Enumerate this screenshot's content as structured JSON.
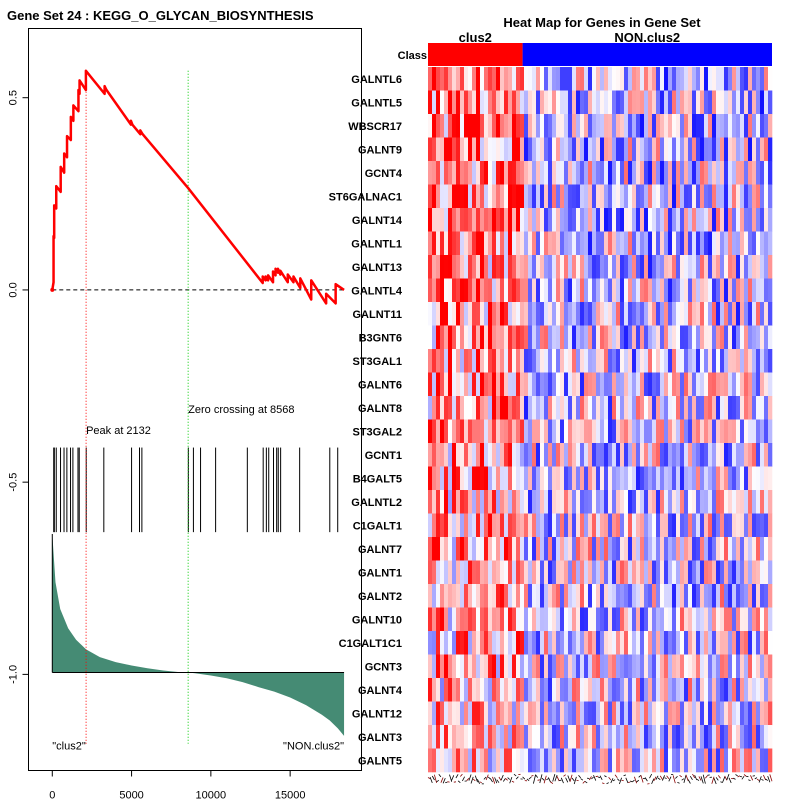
{
  "chart_data": [
    {
      "type": "line",
      "title": "Gene Set  24 : KEGG_O_GLYCAN_BIOSYNTHESIS",
      "xlabel": "",
      "ylabel": "",
      "xlim": [
        -1500,
        19500
      ],
      "ylim": [
        -1.25,
        0.68
      ],
      "x_ticks": [
        0,
        5000,
        10000,
        15000
      ],
      "x_tick_labels": [
        "0",
        "5000",
        "10000",
        "15000"
      ],
      "y_ticks": [
        0.5,
        0.0,
        -0.5,
        -1.0
      ],
      "y_tick_labels": [
        "0.5",
        "0.0",
        "-0.5",
        "-1.0"
      ],
      "running_es": {
        "name": "Enrichment score",
        "color": "#ff0000",
        "x": [
          0,
          80,
          80,
          120,
          120,
          250,
          250,
          530,
          530,
          750,
          750,
          930,
          930,
          1170,
          1170,
          1330,
          1330,
          1650,
          1650,
          1720,
          1720,
          2120,
          2120,
          3300,
          3300,
          3420,
          3420,
          4960,
          4960,
          5050,
          5050,
          5550,
          5550,
          5700,
          5700,
          8568,
          13270,
          13270,
          13450,
          13450,
          13610,
          13610,
          13920,
          13920,
          14080,
          14080,
          14230,
          14230,
          14380,
          14380,
          14850,
          14850,
          15210,
          15210,
          15640,
          15640,
          16330,
          16330,
          17270,
          17270,
          17870,
          17870,
          18400
        ],
        "y": [
          0,
          0.02,
          0.14,
          0.135,
          0.22,
          0.212,
          0.27,
          0.255,
          0.32,
          0.305,
          0.355,
          0.345,
          0.4,
          0.39,
          0.45,
          0.44,
          0.48,
          0.465,
          0.52,
          0.51,
          0.545,
          0.52,
          0.57,
          0.51,
          0.53,
          0.52,
          0.52,
          0.43,
          0.44,
          0.43,
          0.43,
          0.405,
          0.415,
          0.405,
          0.405,
          0.265,
          0.018,
          0.035,
          0.025,
          0.035,
          0.025,
          0.038,
          0.02,
          0.048,
          0.038,
          0.055,
          0.045,
          0.055,
          0.04,
          0.05,
          0.02,
          0.04,
          0.02,
          0.035,
          0.005,
          0.03,
          -0.025,
          0.025,
          -0.035,
          -0.01,
          -0.035,
          0.015,
          0.0
        ]
      },
      "zero_line": 0.0,
      "peak": {
        "x": 2132,
        "label": "Peak at 2132"
      },
      "zero_crossing": {
        "x": 8568,
        "label": "Zero crossing at 8568"
      },
      "hits": [
        90,
        130,
        250,
        520,
        740,
        920,
        1150,
        1300,
        1620,
        1700,
        2140,
        3250,
        5000,
        5500,
        5650,
        8580,
        8900,
        9350,
        10300,
        12300,
        13300,
        13500,
        13650,
        13950,
        14150,
        14250,
        14400,
        15600,
        17500,
        18000
      ],
      "ranked_metric": {
        "color": "#458b74",
        "baseline": -0.995,
        "x": [
          0,
          200,
          500,
          1000,
          1500,
          2132,
          3000,
          4000,
          5000,
          6000,
          7000,
          8000,
          8568,
          9000,
          10000,
          11000,
          12000,
          13000,
          14000,
          15000,
          16000,
          17000,
          17500,
          18000,
          18400
        ],
        "y": [
          -0.635,
          -0.76,
          -0.83,
          -0.88,
          -0.91,
          -0.935,
          -0.955,
          -0.968,
          -0.977,
          -0.984,
          -0.99,
          -0.994,
          -0.995,
          -0.997,
          -1.003,
          -1.01,
          -1.02,
          -1.033,
          -1.045,
          -1.06,
          -1.08,
          -1.105,
          -1.12,
          -1.14,
          -1.16
        ]
      },
      "class_labels": {
        "left": "\"clus2\"",
        "right": "\"NON.clus2\""
      }
    },
    {
      "type": "heatmap",
      "title": "Heat Map for Genes in Gene Set",
      "class_header": "Class",
      "classes": [
        {
          "name": "clus2",
          "color": "#ff0000",
          "fraction": 0.275
        },
        {
          "name": "NON.clus2",
          "color": "#0000ff",
          "fraction": 0.725
        }
      ],
      "genes": [
        "GALNTL6",
        "GALNTL5",
        "WBSCR17",
        "GALNT9",
        "GCNT4",
        "ST6GALNAC1",
        "GALNT14",
        "GALNTL1",
        "GALNT13",
        "GALNTL4",
        "GALNT11",
        "B3GNT6",
        "ST3GAL1",
        "GALNT6",
        "GALNT8",
        "ST3GAL2",
        "GCNT1",
        "B4GALT5",
        "GALNTL2",
        "C1GALT1",
        "GALNT7",
        "GALNT1",
        "GALNT2",
        "GALNT10",
        "C1GALT1C1",
        "GCNT3",
        "GALNT4",
        "GALNT12",
        "GALNT3",
        "GALNT5"
      ],
      "color_scale": {
        "low": "#0000ff",
        "mid": "#ffffff",
        "high": "#ff0000"
      }
    }
  ]
}
